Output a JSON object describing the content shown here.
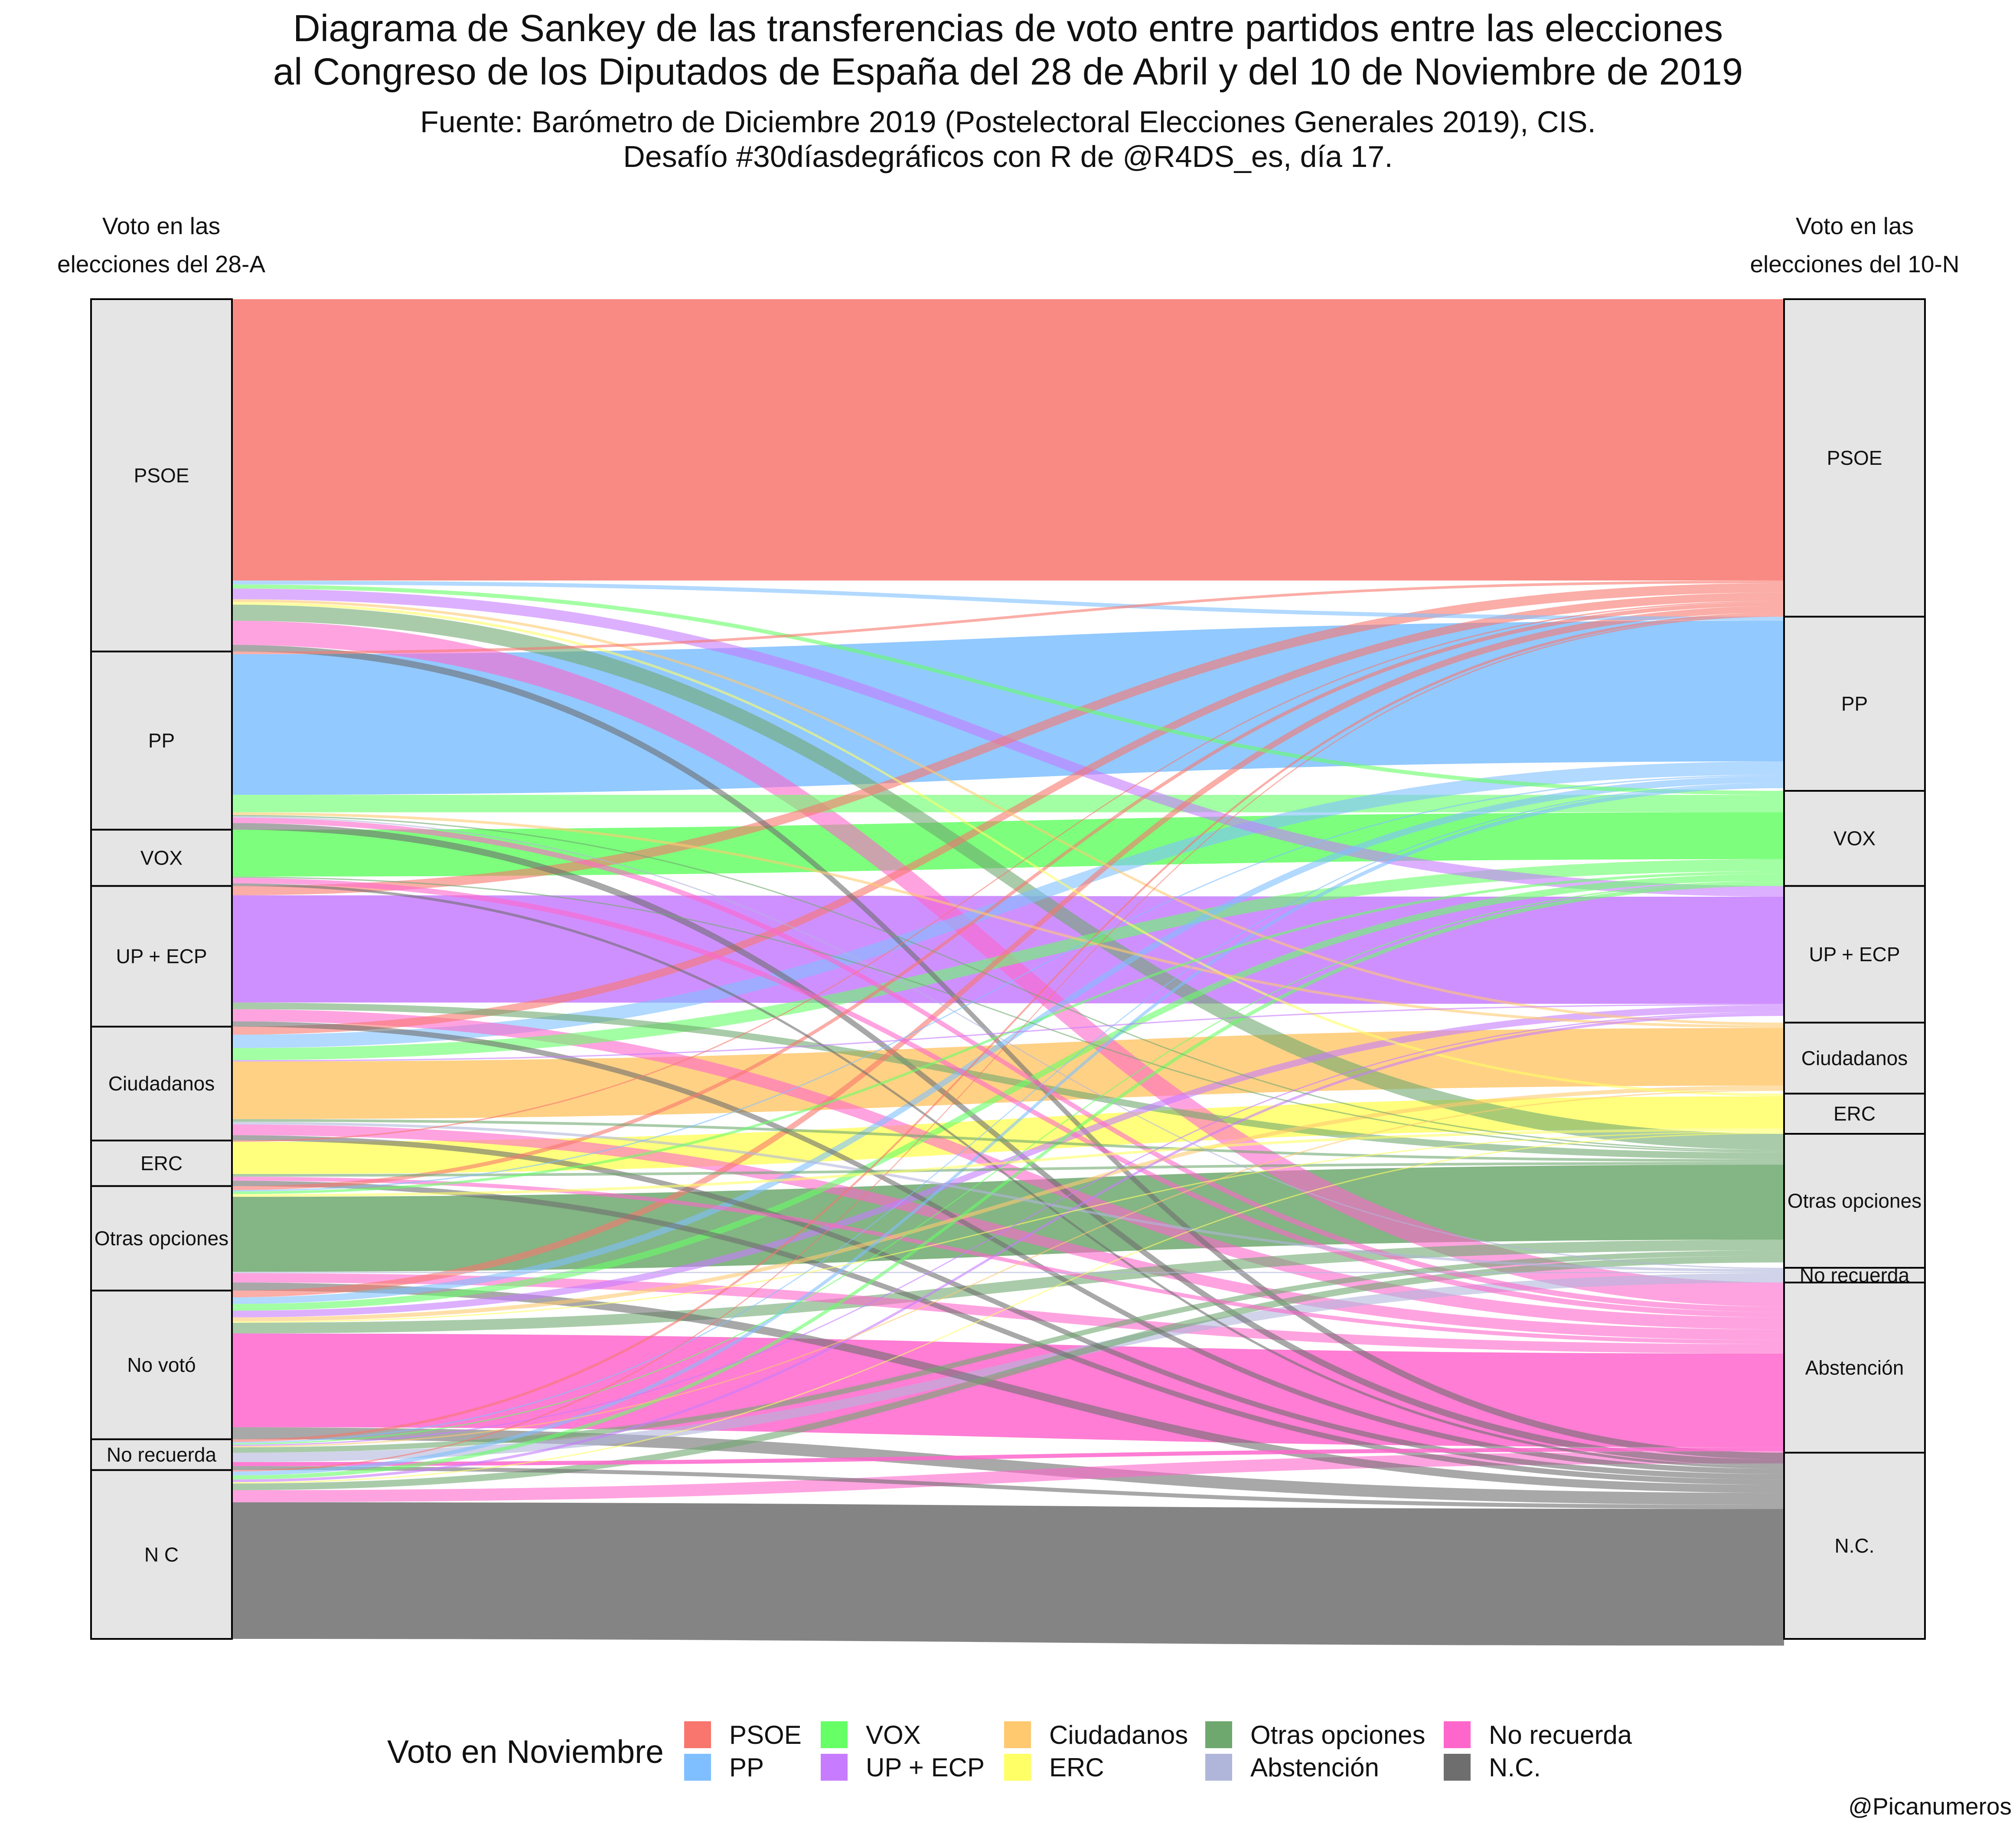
{
  "header": {
    "title_line1": "Diagrama de Sankey de las transferencias de voto entre partidos entre las elecciones",
    "title_line2": "al Congreso de los Diputados de España del 28 de Abril y del 10 de Noviembre de 2019",
    "subtitle_line1": "Fuente: Barómetro de Diciembre 2019 (Postelectoral Elecciones Generales 2019), CIS.",
    "subtitle_line2": "Desafío #30díasdegráficos con R de @R4DS_es, día 17."
  },
  "axes": {
    "left_heading_line1": "Voto en las",
    "left_heading_line2": "elecciones del 28-A",
    "right_heading_line1": "Voto en las",
    "right_heading_line2": "elecciones del 10-N"
  },
  "legend": {
    "title": "Voto en Noviembre",
    "items": [
      {
        "label": "PSOE",
        "color": "#F8766D"
      },
      {
        "label": "PP",
        "color": "#7FBFFF"
      },
      {
        "label": "VOX",
        "color": "#66FF66"
      },
      {
        "label": "UP + ECP",
        "color": "#C77CFF"
      },
      {
        "label": "Ciudadanos",
        "color": "#FFC970"
      },
      {
        "label": "ERC",
        "color": "#FFFF66"
      },
      {
        "label": "Otras opciones",
        "color": "#6FA86F"
      },
      {
        "label": "Abstención",
        "color": "#B0B6DA"
      },
      {
        "label": "No recuerda",
        "color": "#FF66CC"
      },
      {
        "label": "N.C.",
        "color": "#6E6E6E"
      }
    ]
  },
  "caption": "@Picanumeros",
  "chart_data": {
    "type": "sankey",
    "source_nodes": [
      {
        "label": "PSOE",
        "value": 26.3
      },
      {
        "label": "PP",
        "value": 13.3
      },
      {
        "label": "VOX",
        "value": 4.2
      },
      {
        "label": "UP + ECP",
        "value": 10.5
      },
      {
        "label": "Ciudadanos",
        "value": 8.5
      },
      {
        "label": "ERC",
        "value": 3.4
      },
      {
        "label": "Otras opciones",
        "value": 7.8
      },
      {
        "label": "No votó",
        "value": 11.1
      },
      {
        "label": "No recuerda",
        "value": 2.3
      },
      {
        "label": "N C",
        "value": 12.6
      }
    ],
    "target_nodes": [
      {
        "label": "PSOE",
        "value": 23.7
      },
      {
        "label": "PP",
        "value": 13.0
      },
      {
        "label": "VOX",
        "value": 7.1
      },
      {
        "label": "UP + ECP",
        "value": 10.2
      },
      {
        "label": "Ciudadanos",
        "value": 5.3
      },
      {
        "label": "ERC",
        "value": 3.0
      },
      {
        "label": "Otras opciones",
        "value": 10.0
      },
      {
        "label": "No recuerda",
        "value": 1.1
      },
      {
        "label": "Abstención",
        "value": 12.7
      },
      {
        "label": "N.C.",
        "value": 13.9
      }
    ],
    "flows": [
      [
        0,
        0,
        21.0
      ],
      [
        0,
        1,
        0.3
      ],
      [
        0,
        2,
        0.3
      ],
      [
        0,
        3,
        0.8
      ],
      [
        0,
        4,
        0.2
      ],
      [
        0,
        5,
        0.2
      ],
      [
        0,
        6,
        1.2
      ],
      [
        0,
        8,
        1.8
      ],
      [
        0,
        9,
        0.5
      ],
      [
        1,
        0,
        0.2
      ],
      [
        1,
        1,
        10.5
      ],
      [
        1,
        2,
        1.3
      ],
      [
        1,
        4,
        0.2
      ],
      [
        1,
        6,
        0.1
      ],
      [
        1,
        7,
        0.1
      ],
      [
        1,
        8,
        0.4
      ],
      [
        1,
        9,
        0.5
      ],
      [
        2,
        2,
        3.5
      ],
      [
        2,
        6,
        0.1
      ],
      [
        2,
        8,
        0.4
      ],
      [
        2,
        9,
        0.2
      ],
      [
        3,
        0,
        0.7
      ],
      [
        3,
        3,
        8.0
      ],
      [
        3,
        6,
        0.5
      ],
      [
        3,
        8,
        0.9
      ],
      [
        3,
        9,
        0.4
      ],
      [
        4,
        0,
        0.6
      ],
      [
        4,
        1,
        1.0
      ],
      [
        4,
        2,
        0.9
      ],
      [
        4,
        3,
        0.1
      ],
      [
        4,
        4,
        4.3
      ],
      [
        4,
        6,
        0.2
      ],
      [
        4,
        7,
        0.2
      ],
      [
        4,
        8,
        0.8
      ],
      [
        4,
        9,
        0.4
      ],
      [
        5,
        0,
        0.1
      ],
      [
        5,
        5,
        2.4
      ],
      [
        5,
        6,
        0.2
      ],
      [
        5,
        8,
        0.3
      ],
      [
        5,
        9,
        0.4
      ],
      [
        6,
        0,
        0.3
      ],
      [
        6,
        1,
        0.1
      ],
      [
        6,
        2,
        0.2
      ],
      [
        6,
        5,
        0.2
      ],
      [
        6,
        6,
        5.6
      ],
      [
        6,
        7,
        0.1
      ],
      [
        6,
        8,
        0.7
      ],
      [
        6,
        9,
        0.6
      ],
      [
        7,
        0,
        0.5
      ],
      [
        7,
        1,
        0.5
      ],
      [
        7,
        2,
        0.5
      ],
      [
        7,
        3,
        0.5
      ],
      [
        7,
        4,
        0.3
      ],
      [
        7,
        5,
        0.1
      ],
      [
        7,
        6,
        0.8
      ],
      [
        7,
        8,
        7.0
      ],
      [
        7,
        9,
        0.9
      ],
      [
        8,
        0,
        0.2
      ],
      [
        8,
        1,
        0.1
      ],
      [
        8,
        2,
        0.1
      ],
      [
        8,
        3,
        0.1
      ],
      [
        8,
        4,
        0.1
      ],
      [
        8,
        6,
        0.4
      ],
      [
        8,
        7,
        0.7
      ],
      [
        8,
        8,
        0.3
      ],
      [
        8,
        9,
        0.3
      ],
      [
        9,
        0,
        0.1
      ],
      [
        9,
        1,
        0.3
      ],
      [
        9,
        2,
        0.3
      ],
      [
        9,
        3,
        0.2
      ],
      [
        9,
        5,
        0.1
      ],
      [
        9,
        6,
        0.5
      ],
      [
        9,
        8,
        0.9
      ],
      [
        9,
        9,
        10.2
      ]
    ]
  }
}
